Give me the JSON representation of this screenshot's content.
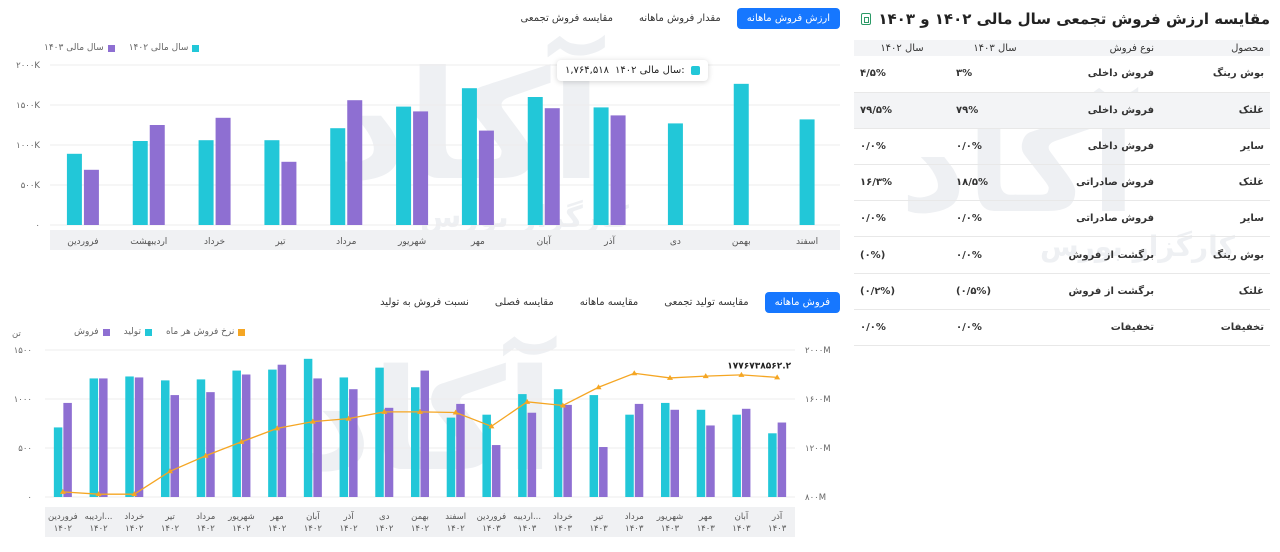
{
  "watermark": {
    "logo": "آکاد",
    "tagline": "کارگزار بورس"
  },
  "top_chart": {
    "tabs": [
      {
        "label": "ارزش فروش ماهانه",
        "active": true
      },
      {
        "label": "مقدار فروش ماهانه",
        "active": false
      },
      {
        "label": "مقایسه فروش تجمعی",
        "active": false
      }
    ],
    "tooltip": {
      "series": "سال مالی ۱۴۰۲:",
      "value": "۱,۷۶۴,۵۱۸",
      "color": "#22c7d8"
    }
  },
  "bottom_chart": {
    "tabs": [
      {
        "label": "فروش ماهانه",
        "active": true
      },
      {
        "label": "مقایسه تولید تجمعی",
        "active": false
      },
      {
        "label": "مقایسه ماهانه",
        "active": false
      },
      {
        "label": "مقایسه فصلی",
        "active": false
      },
      {
        "label": "نسبت فروش به تولید",
        "active": false
      }
    ],
    "last_value_label": "۱۷۷۶۷۳۸۵۶۲.۲"
  },
  "table": {
    "title": "مقایسه ارزش فروش تجمعی سال مالی ۱۴۰۲ و ۱۴۰۳",
    "headers": {
      "product": "محصول",
      "type": "نوع فروش",
      "y1403": "سال ۱۴۰۳",
      "y1402": "سال ۱۴۰۲"
    },
    "rows": [
      {
        "product": "بوش رینگ",
        "type": "فروش داخلی",
        "y1403": "۳%",
        "y1402": "۴/۵%"
      },
      {
        "product": "غلتک",
        "type": "فروش داخلی",
        "y1403": "۷۹%",
        "y1402": "۷۹/۵%"
      },
      {
        "product": "سایر",
        "type": "فروش داخلی",
        "y1403": "۰/۰%",
        "y1402": "۰/۰%"
      },
      {
        "product": "غلتک",
        "type": "فروش صادراتی",
        "y1403": "۱۸/۵%",
        "y1402": "۱۶/۳%"
      },
      {
        "product": "سایر",
        "type": "فروش صادراتی",
        "y1403": "۰/۰%",
        "y1402": "۰/۰%"
      },
      {
        "product": "بوش رینگ",
        "type": "برگشت از فروش",
        "y1403": "۰/۰%",
        "y1402": "(۰%)"
      },
      {
        "product": "غلتک",
        "type": "برگشت از فروش",
        "y1403": "(۰/۵%)",
        "y1402": "(۰/۲%)"
      },
      {
        "product": "تخفیفات",
        "type": "تخفیفات",
        "y1403": "۰/۰%",
        "y1402": "۰/۰%"
      }
    ]
  },
  "chart_data": [
    {
      "type": "bar",
      "yticks": [
        "۰",
        "۵۰۰K",
        "۱۰۰۰K",
        "۱۵۰۰K",
        "۲۰۰۰K"
      ],
      "ylim": [
        0,
        2000000
      ],
      "categories": [
        "فروردین",
        "اردیبهشت",
        "خرداد",
        "تیر",
        "مرداد",
        "شهریور",
        "مهر",
        "آبان",
        "آذر",
        "دی",
        "بهمن",
        "اسفند"
      ],
      "series": [
        {
          "name": "سال مالی ۱۴۰۲",
          "color": "#22c7d8",
          "values": [
            890000,
            1050000,
            1060000,
            1060000,
            1210000,
            1480000,
            1710000,
            1600000,
            1470000,
            1270000,
            1764518,
            1320000
          ]
        },
        {
          "name": "سال مالی ۱۴۰۳",
          "color": "#8e6fd2",
          "values": [
            690000,
            1250000,
            1340000,
            790000,
            1560000,
            1420000,
            1180000,
            1460000,
            1370000,
            null,
            null,
            null
          ]
        }
      ],
      "legend_position": "top-left"
    },
    {
      "type": "bar+line",
      "y_left_unit": "تن",
      "y_left_ticks": [
        "۰",
        "۵۰۰",
        "۱۰۰۰",
        "۱۵۰۰"
      ],
      "y_left_lim": [
        0,
        1500
      ],
      "y_right_ticks": [
        "۸۰۰M",
        "۱۲۰۰M",
        "۱۶۰۰M",
        "۲۰۰۰M"
      ],
      "y_right_lim": [
        800000000,
        2000000000
      ],
      "categories": [
        [
          "فروردین",
          "۱۴۰۲"
        ],
        [
          "اردیبه...",
          "۱۴۰۲"
        ],
        [
          "خرداد",
          "۱۴۰۲"
        ],
        [
          "تیر",
          "۱۴۰۲"
        ],
        [
          "مرداد",
          "۱۴۰۲"
        ],
        [
          "شهریور",
          "۱۴۰۲"
        ],
        [
          "مهر",
          "۱۴۰۲"
        ],
        [
          "آبان",
          "۱۴۰۲"
        ],
        [
          "آذر",
          "۱۴۰۲"
        ],
        [
          "دی",
          "۱۴۰۲"
        ],
        [
          "بهمن",
          "۱۴۰۲"
        ],
        [
          "اسفند",
          "۱۴۰۲"
        ],
        [
          "فروردین",
          "۱۴۰۳"
        ],
        [
          "اردیبه...",
          "۱۴۰۳"
        ],
        [
          "خرداد",
          "۱۴۰۳"
        ],
        [
          "تیر",
          "۱۴۰۳"
        ],
        [
          "مرداد",
          "۱۴۰۳"
        ],
        [
          "شهریور",
          "۱۴۰۳"
        ],
        [
          "مهر",
          "۱۴۰۳"
        ],
        [
          "آبان",
          "۱۴۰۳"
        ],
        [
          "آذر",
          "۱۴۰۳"
        ]
      ],
      "series": [
        {
          "name": "تولید",
          "kind": "bar",
          "axis": "left",
          "color": "#22c7d8",
          "values": [
            710,
            1210,
            1230,
            1190,
            1200,
            1290,
            1300,
            1410,
            1220,
            1320,
            1120,
            810,
            840,
            1050,
            1100,
            1040,
            840,
            960,
            890,
            840,
            650
          ]
        },
        {
          "name": "فروش",
          "kind": "bar",
          "axis": "left",
          "color": "#8e6fd2",
          "values": [
            960,
            1210,
            1220,
            1040,
            1070,
            1250,
            1350,
            1210,
            1100,
            910,
            1290,
            950,
            530,
            860,
            940,
            510,
            950,
            890,
            730,
            900,
            760
          ]
        },
        {
          "name": "نرخ فروش هر ماه",
          "kind": "line",
          "axis": "right",
          "color": "#f5a623",
          "values": [
            842000000,
            823000000,
            823000000,
            1010000000,
            1137000000,
            1250000000,
            1360000000,
            1415000000,
            1440000000,
            1495000000,
            1495000000,
            1490000000,
            1377000000,
            1577000000,
            1547000000,
            1696000000,
            1810000000,
            1772000000,
            1787000000,
            1797000000,
            1776738562.2
          ]
        }
      ],
      "legend_position": "top-left"
    }
  ]
}
